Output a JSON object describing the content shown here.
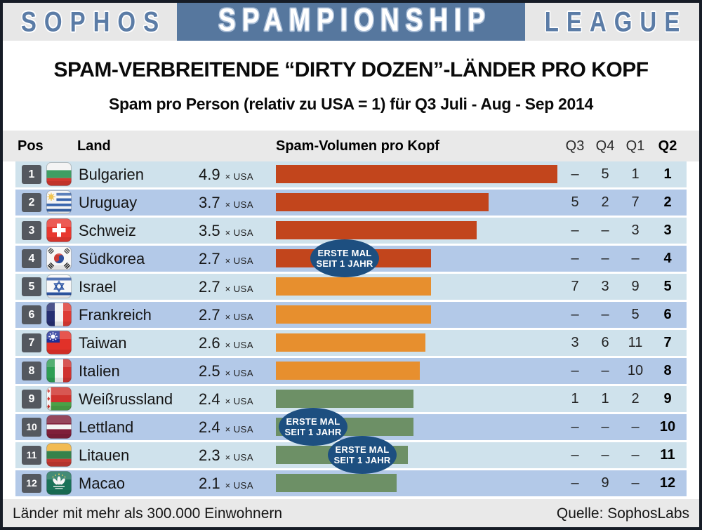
{
  "header": {
    "left": "SOPHOS",
    "center": "SPAMPIONSHIP",
    "right": "LEAGUE"
  },
  "title": "SPAM-VERBREITENDE “DIRTY DOZEN”-LÄNDER PRO KOPF",
  "subtitle": "Spam pro Person (relativ zu USA = 1) für Q3 Juli - Aug - Sep 2014",
  "columns": {
    "pos": "Pos",
    "land": "Land",
    "volume": "Spam-Volumen pro Kopf",
    "quarters": [
      "Q3",
      "Q4",
      "Q1",
      "Q2"
    ]
  },
  "badge_text": {
    "line1": "ERSTE MAL",
    "line2": "SEIT 1 JAHR"
  },
  "rows": [
    {
      "pos": 1,
      "country": "Bulgarien",
      "flag": "bulgaria",
      "value": "4.9",
      "unit": "× USA",
      "group": "red",
      "q3": "–",
      "q4": "5",
      "q1": "1",
      "q2": "1",
      "badge": false
    },
    {
      "pos": 2,
      "country": "Uruguay",
      "flag": "uruguay",
      "value": "3.7",
      "unit": "× USA",
      "group": "red",
      "q3": "5",
      "q4": "2",
      "q1": "7",
      "q2": "2",
      "badge": false
    },
    {
      "pos": 3,
      "country": "Schweiz",
      "flag": "switzerland",
      "value": "3.5",
      "unit": "× USA",
      "group": "red",
      "q3": "–",
      "q4": "–",
      "q1": "3",
      "q2": "3",
      "badge": false
    },
    {
      "pos": 4,
      "country": "Südkorea",
      "flag": "southkorea",
      "value": "2.7",
      "unit": "× USA",
      "group": "red",
      "q3": "–",
      "q4": "–",
      "q1": "–",
      "q2": "4",
      "badge": true
    },
    {
      "pos": 5,
      "country": "Israel",
      "flag": "israel",
      "value": "2.7",
      "unit": "× USA",
      "group": "orange",
      "q3": "7",
      "q4": "3",
      "q1": "9",
      "q2": "5",
      "badge": false
    },
    {
      "pos": 6,
      "country": "Frankreich",
      "flag": "france",
      "value": "2.7",
      "unit": "× USA",
      "group": "orange",
      "q3": "–",
      "q4": "–",
      "q1": "5",
      "q2": "6",
      "badge": false
    },
    {
      "pos": 7,
      "country": "Taiwan",
      "flag": "taiwan",
      "value": "2.6",
      "unit": "× USA",
      "group": "orange",
      "q3": "3",
      "q4": "6",
      "q1": "11",
      "q2": "7",
      "badge": false
    },
    {
      "pos": 8,
      "country": "Italien",
      "flag": "italy",
      "value": "2.5",
      "unit": "× USA",
      "group": "orange",
      "q3": "–",
      "q4": "–",
      "q1": "10",
      "q2": "8",
      "badge": false
    },
    {
      "pos": 9,
      "country": "Weißrussland",
      "flag": "belarus",
      "value": "2.4",
      "unit": "× USA",
      "group": "green",
      "q3": "1",
      "q4": "1",
      "q1": "2",
      "q2": "9",
      "badge": false
    },
    {
      "pos": 10,
      "country": "Lettland",
      "flag": "latvia",
      "value": "2.4",
      "unit": "× USA",
      "group": "green",
      "q3": "–",
      "q4": "–",
      "q1": "–",
      "q2": "10",
      "badge": true
    },
    {
      "pos": 11,
      "country": "Litauen",
      "flag": "lithuania",
      "value": "2.3",
      "unit": "× USA",
      "group": "green",
      "q3": "–",
      "q4": "–",
      "q1": "–",
      "q2": "11",
      "badge": true
    },
    {
      "pos": 12,
      "country": "Macao",
      "flag": "macao",
      "value": "2.1",
      "unit": "× USA",
      "group": "green",
      "q3": "–",
      "q4": "9",
      "q1": "–",
      "q2": "12",
      "badge": false
    }
  ],
  "footer": {
    "left": "Länder mit mehr als 300.000 Einwohnern",
    "right": "Quelle: SophosLabs"
  },
  "colors": {
    "bar_red": "#c2451c",
    "bar_orange": "#e78f2e",
    "bar_green": "#6d9066",
    "row_light": "#cfe2ec",
    "row_dark": "#b3c9e8",
    "badge_blue": "#1d4f80",
    "pos_badge": "#54585f",
    "band_blue": "#56779e",
    "band_gray": "#e7e7e7"
  },
  "chart_data": {
    "type": "bar",
    "orientation": "horizontal",
    "title": "SPAM-VERBREITENDE “DIRTY DOZEN”-LÄNDER PRO KOPF",
    "subtitle": "Spam pro Person (relativ zu USA = 1) für Q3 Juli - Aug - Sep 2014",
    "categories": [
      "Bulgarien",
      "Uruguay",
      "Schweiz",
      "Südkorea",
      "Israel",
      "Frankreich",
      "Taiwan",
      "Italien",
      "Weißrussland",
      "Lettland",
      "Litauen",
      "Macao"
    ],
    "values": [
      4.9,
      3.7,
      3.5,
      2.7,
      2.7,
      2.7,
      2.6,
      2.5,
      2.4,
      2.4,
      2.3,
      2.1
    ],
    "unit": "× USA",
    "xlabel": "Spam-Volumen pro Kopf",
    "xlim": [
      0,
      5
    ],
    "grid": false,
    "bar_color_groups": {
      "ranks_1_4": "#c2451c",
      "ranks_5_8": "#e78f2e",
      "ranks_9_12": "#6d9066"
    },
    "rank_history": {
      "columns": [
        "Q3",
        "Q4",
        "Q1",
        "Q2"
      ],
      "rows": [
        [
          "–",
          "5",
          "1",
          "1"
        ],
        [
          "5",
          "2",
          "7",
          "2"
        ],
        [
          "–",
          "–",
          "3",
          "3"
        ],
        [
          "–",
          "–",
          "–",
          "4"
        ],
        [
          "7",
          "3",
          "9",
          "5"
        ],
        [
          "–",
          "–",
          "5",
          "6"
        ],
        [
          "3",
          "6",
          "11",
          "7"
        ],
        [
          "–",
          "–",
          "10",
          "8"
        ],
        [
          "1",
          "1",
          "2",
          "9"
        ],
        [
          "–",
          "–",
          "–",
          "10"
        ],
        [
          "–",
          "–",
          "–",
          "11"
        ],
        [
          "–",
          "9",
          "–",
          "12"
        ]
      ]
    },
    "annotations": [
      {
        "text": "ERSTE MAL SEIT 1 JAHR",
        "target": "Südkorea"
      },
      {
        "text": "ERSTE MAL SEIT 1 JAHR",
        "target": "Lettland"
      },
      {
        "text": "ERSTE MAL SEIT 1 JAHR",
        "target": "Litauen"
      }
    ]
  }
}
